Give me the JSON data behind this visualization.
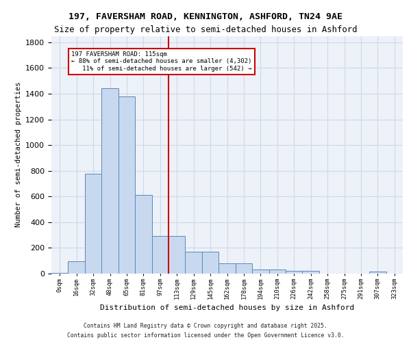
{
  "title_line1": "197, FAVERSHAM ROAD, KENNINGTON, ASHFORD, TN24 9AE",
  "title_line2": "Size of property relative to semi-detached houses in Ashford",
  "xlabel": "Distribution of semi-detached houses by size in Ashford",
  "ylabel": "Number of semi-detached properties",
  "bin_labels": [
    "0sqm",
    "16sqm",
    "32sqm",
    "48sqm",
    "65sqm",
    "81sqm",
    "97sqm",
    "113sqm",
    "129sqm",
    "145sqm",
    "162sqm",
    "178sqm",
    "194sqm",
    "210sqm",
    "226sqm",
    "242sqm",
    "258sqm",
    "275sqm",
    "291sqm",
    "307sqm",
    "323sqm"
  ],
  "bar_values": [
    5,
    95,
    775,
    1445,
    1380,
    610,
    295,
    295,
    170,
    170,
    80,
    80,
    30,
    30,
    20,
    20,
    0,
    0,
    0,
    15,
    0
  ],
  "bar_color": "#c8d9ef",
  "bar_edge_color": "#5588bb",
  "vline_position": 6.5,
  "annotation_text": "197 FAVERSHAM ROAD: 115sqm\n← 88% of semi-detached houses are smaller (4,302)\n   11% of semi-detached houses are larger (542) →",
  "vline_color": "#cc0000",
  "ylim": [
    0,
    1850
  ],
  "grid_color": "#d0d8e8",
  "background_color": "#edf1f8",
  "footer_line1": "Contains HM Land Registry data © Crown copyright and database right 2025.",
  "footer_line2": "Contains public sector information licensed under the Open Government Licence v3.0."
}
